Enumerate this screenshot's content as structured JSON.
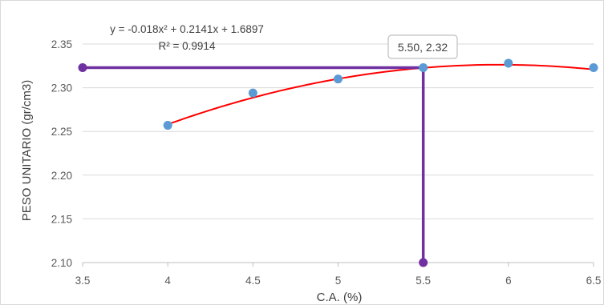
{
  "chart_data": {
    "type": "scatter",
    "xlabel": "C.A. (%)",
    "ylabel": "PESO UNITARIO (gr/cm3)",
    "xlim": [
      3.5,
      6.5
    ],
    "ylim": [
      2.1,
      2.35
    ],
    "x_ticks": [
      "3.5",
      "4",
      "4.5",
      "5",
      "5.5",
      "6",
      "6.5"
    ],
    "y_ticks": [
      "2.10",
      "2.15",
      "2.20",
      "2.25",
      "2.30",
      "2.35"
    ],
    "grid": "horizontal",
    "series": [
      {
        "points": [
          {
            "x": 4.0,
            "y": 2.257
          },
          {
            "x": 4.5,
            "y": 2.294
          },
          {
            "x": 5.0,
            "y": 2.31
          },
          {
            "x": 5.5,
            "y": 2.323
          },
          {
            "x": 6.0,
            "y": 2.328
          },
          {
            "x": 6.5,
            "y": 2.323
          }
        ],
        "color": "#5b9bd5"
      }
    ],
    "trendline": {
      "type": "polynomial",
      "coefficients": [
        -0.018,
        0.2141,
        1.6897
      ],
      "x_range": [
        4.0,
        6.5
      ],
      "color": "#ff0000",
      "equation_text": "y = -0.018x² + 0.2141x + 1.6897",
      "r2_text": "R² = 0.9914"
    },
    "reference_lines": {
      "color": "#7030a0",
      "horizontal": {
        "y": 2.323,
        "x_from": 3.5,
        "x_to": 5.5
      },
      "vertical": {
        "x": 5.5,
        "y_from": 2.1,
        "y_to": 2.323
      },
      "endpoints": [
        {
          "x": 3.5,
          "y": 2.323
        },
        {
          "x": 5.5,
          "y": 2.1
        }
      ]
    },
    "data_label": {
      "x": 5.5,
      "y": 2.323,
      "text": "5.50, 2.32"
    }
  }
}
